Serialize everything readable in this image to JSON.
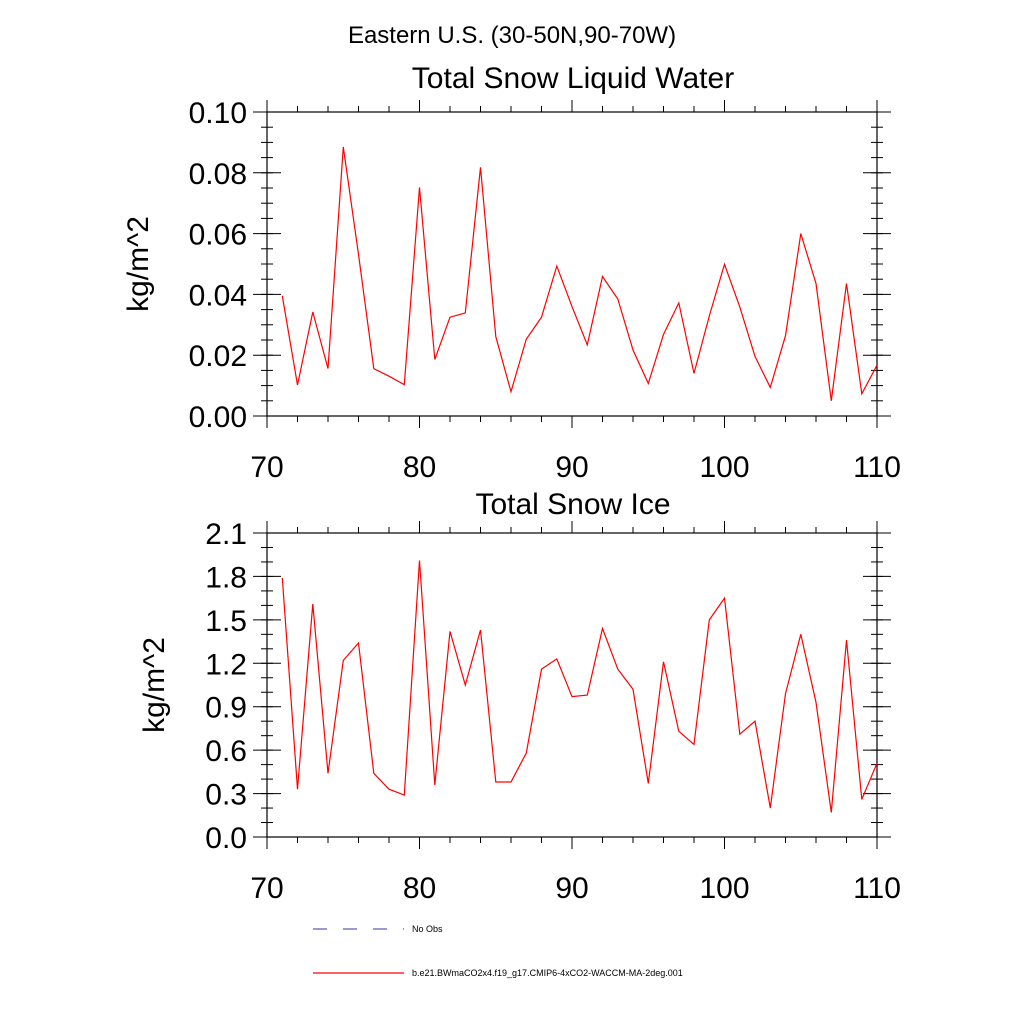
{
  "figure": {
    "suptitle": "Eastern U.S. (30-50N,90-70W)",
    "colors": {
      "series": "#ff0000",
      "obs": "#3333aa",
      "axis": "#000000"
    }
  },
  "chart_data": [
    {
      "type": "line",
      "title": "Total Snow Liquid Water",
      "xlabel": "",
      "ylabel": "kg/m^2",
      "xlim": [
        70,
        110
      ],
      "ylim": [
        0.0,
        0.1
      ],
      "xticks": [
        70,
        80,
        90,
        100,
        110
      ],
      "xtick_labels": [
        "70",
        "80",
        "90",
        "100",
        "110"
      ],
      "yticks": [
        0.0,
        0.02,
        0.04,
        0.06,
        0.08,
        0.1
      ],
      "ytick_labels": [
        "0.00",
        "0.02",
        "0.04",
        "0.06",
        "0.08",
        "0.10"
      ],
      "yminor_step": 0.005,
      "series": [
        {
          "name": "b.e21.BWmaCO2x4.f19_g17.CMIP6-4xCO2-WACCM-MA-2deg.001",
          "color": "#ff0000",
          "x": [
            71,
            72,
            73,
            74,
            75,
            76,
            77,
            78,
            79,
            80,
            81,
            82,
            83,
            84,
            85,
            86,
            87,
            88,
            89,
            90,
            91,
            92,
            93,
            94,
            95,
            96,
            97,
            98,
            99,
            100,
            101,
            102,
            103,
            104,
            105,
            106,
            107,
            108,
            109,
            110
          ],
          "values": [
            0.0395,
            0.0102,
            0.0342,
            0.0156,
            0.0885,
            0.0532,
            0.0156,
            0.0131,
            0.0103,
            0.0752,
            0.0186,
            0.0325,
            0.0339,
            0.0818,
            0.0261,
            0.008,
            0.0253,
            0.0325,
            0.0493,
            0.036,
            0.0234,
            0.0459,
            0.0385,
            0.0217,
            0.0107,
            0.0268,
            0.0372,
            0.014,
            0.0329,
            0.0499,
            0.0359,
            0.0196,
            0.0094,
            0.0264,
            0.06,
            0.0436,
            0.005,
            0.0436,
            0.0073,
            0.0167
          ]
        }
      ]
    },
    {
      "type": "line",
      "title": "Total Snow Ice",
      "xlabel": "",
      "ylabel": "kg/m^2",
      "xlim": [
        70,
        110
      ],
      "ylim": [
        0.0,
        2.1
      ],
      "xticks": [
        70,
        80,
        90,
        100,
        110
      ],
      "xtick_labels": [
        "70",
        "80",
        "90",
        "100",
        "110"
      ],
      "yticks": [
        0.0,
        0.3,
        0.6,
        0.9,
        1.2,
        1.5,
        1.8,
        2.1
      ],
      "ytick_labels": [
        "0.0",
        "0.3",
        "0.6",
        "0.9",
        "1.2",
        "1.5",
        "1.8",
        "2.1"
      ],
      "yminor_step": 0.1,
      "series": [
        {
          "name": "b.e21.BWmaCO2x4.f19_g17.CMIP6-4xCO2-WACCM-MA-2deg.001",
          "color": "#ff0000",
          "x": [
            71,
            72,
            73,
            74,
            75,
            76,
            77,
            78,
            79,
            80,
            81,
            82,
            83,
            84,
            85,
            86,
            87,
            88,
            89,
            90,
            91,
            92,
            93,
            94,
            95,
            96,
            97,
            98,
            99,
            100,
            101,
            102,
            103,
            104,
            105,
            106,
            107,
            108,
            109,
            110
          ],
          "values": [
            1.79,
            0.33,
            1.61,
            0.44,
            1.22,
            1.34,
            0.44,
            0.33,
            0.29,
            1.91,
            0.36,
            1.42,
            1.05,
            1.43,
            0.38,
            0.38,
            0.58,
            1.16,
            1.23,
            0.97,
            0.98,
            1.44,
            1.16,
            1.02,
            0.37,
            1.21,
            0.73,
            0.64,
            1.5,
            1.65,
            0.71,
            0.8,
            0.2,
            0.99,
            1.4,
            0.93,
            0.17,
            1.36,
            0.26,
            0.51
          ]
        }
      ]
    }
  ],
  "legend": {
    "obs_label": "No Obs",
    "model_label": "b.e21.BWmaCO2x4.f19_g17.CMIP6-4xCO2-WACCM-MA-2deg.001"
  }
}
